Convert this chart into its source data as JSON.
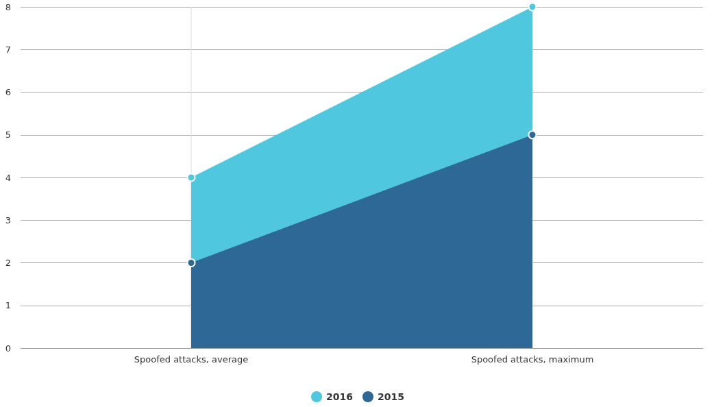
{
  "chart_data": {
    "type": "area",
    "categories": [
      "Spoofed attacks, average",
      "Spoofed attacks, maximum"
    ],
    "series": [
      {
        "name": "2016",
        "color": "#4fc8df",
        "values": [
          4,
          8
        ]
      },
      {
        "name": "2015",
        "color": "#2d6896",
        "values": [
          2,
          5
        ]
      }
    ],
    "ylim": [
      0,
      8
    ],
    "yticks": [
      0,
      1,
      2,
      3,
      4,
      5,
      6,
      7,
      8
    ],
    "grid": true,
    "legend": "bottom",
    "marker": "circle"
  }
}
